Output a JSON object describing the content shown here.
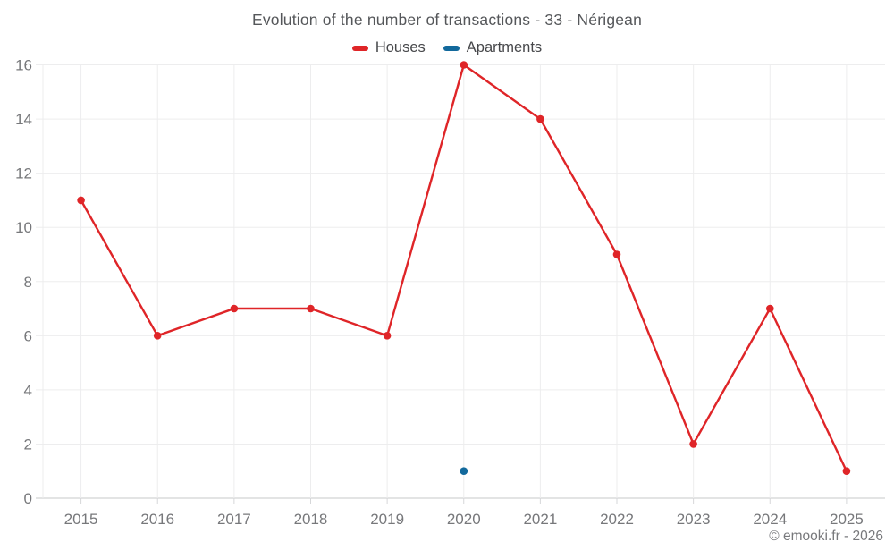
{
  "title": "Evolution of the number of transactions - 33 - Nérigean",
  "legend": {
    "items": [
      {
        "label": "Houses",
        "color": "#df2528"
      },
      {
        "label": "Apartments",
        "color": "#12699c"
      }
    ]
  },
  "footer": "© emooki.fr - 2026",
  "colors": {
    "houses": "#df2528",
    "apartments": "#12699c",
    "gridline": "#ededee",
    "zero_axis": "#c7c8ca",
    "tick": "#d6d7d9",
    "axis_label": "#77787b",
    "title_text": "#55575a",
    "background": "#ffffff"
  },
  "chart_data": {
    "type": "line",
    "title": "Evolution of the number of transactions - 33 - Nérigean",
    "x": [
      2015,
      2016,
      2017,
      2018,
      2019,
      2020,
      2021,
      2022,
      2023,
      2024,
      2025
    ],
    "series": [
      {
        "name": "Houses",
        "color": "#df2528",
        "values": [
          11,
          6,
          7,
          7,
          6,
          16,
          14,
          9,
          2,
          7,
          1
        ]
      },
      {
        "name": "Apartments",
        "color": "#12699c",
        "values": [
          null,
          null,
          null,
          null,
          null,
          1,
          null,
          null,
          null,
          null,
          null
        ]
      }
    ],
    "xlabel": "",
    "ylabel": "",
    "ylim": [
      0,
      16
    ],
    "ytick_step": 2,
    "grid": true,
    "legend_position": "top",
    "marker": "circle"
  }
}
